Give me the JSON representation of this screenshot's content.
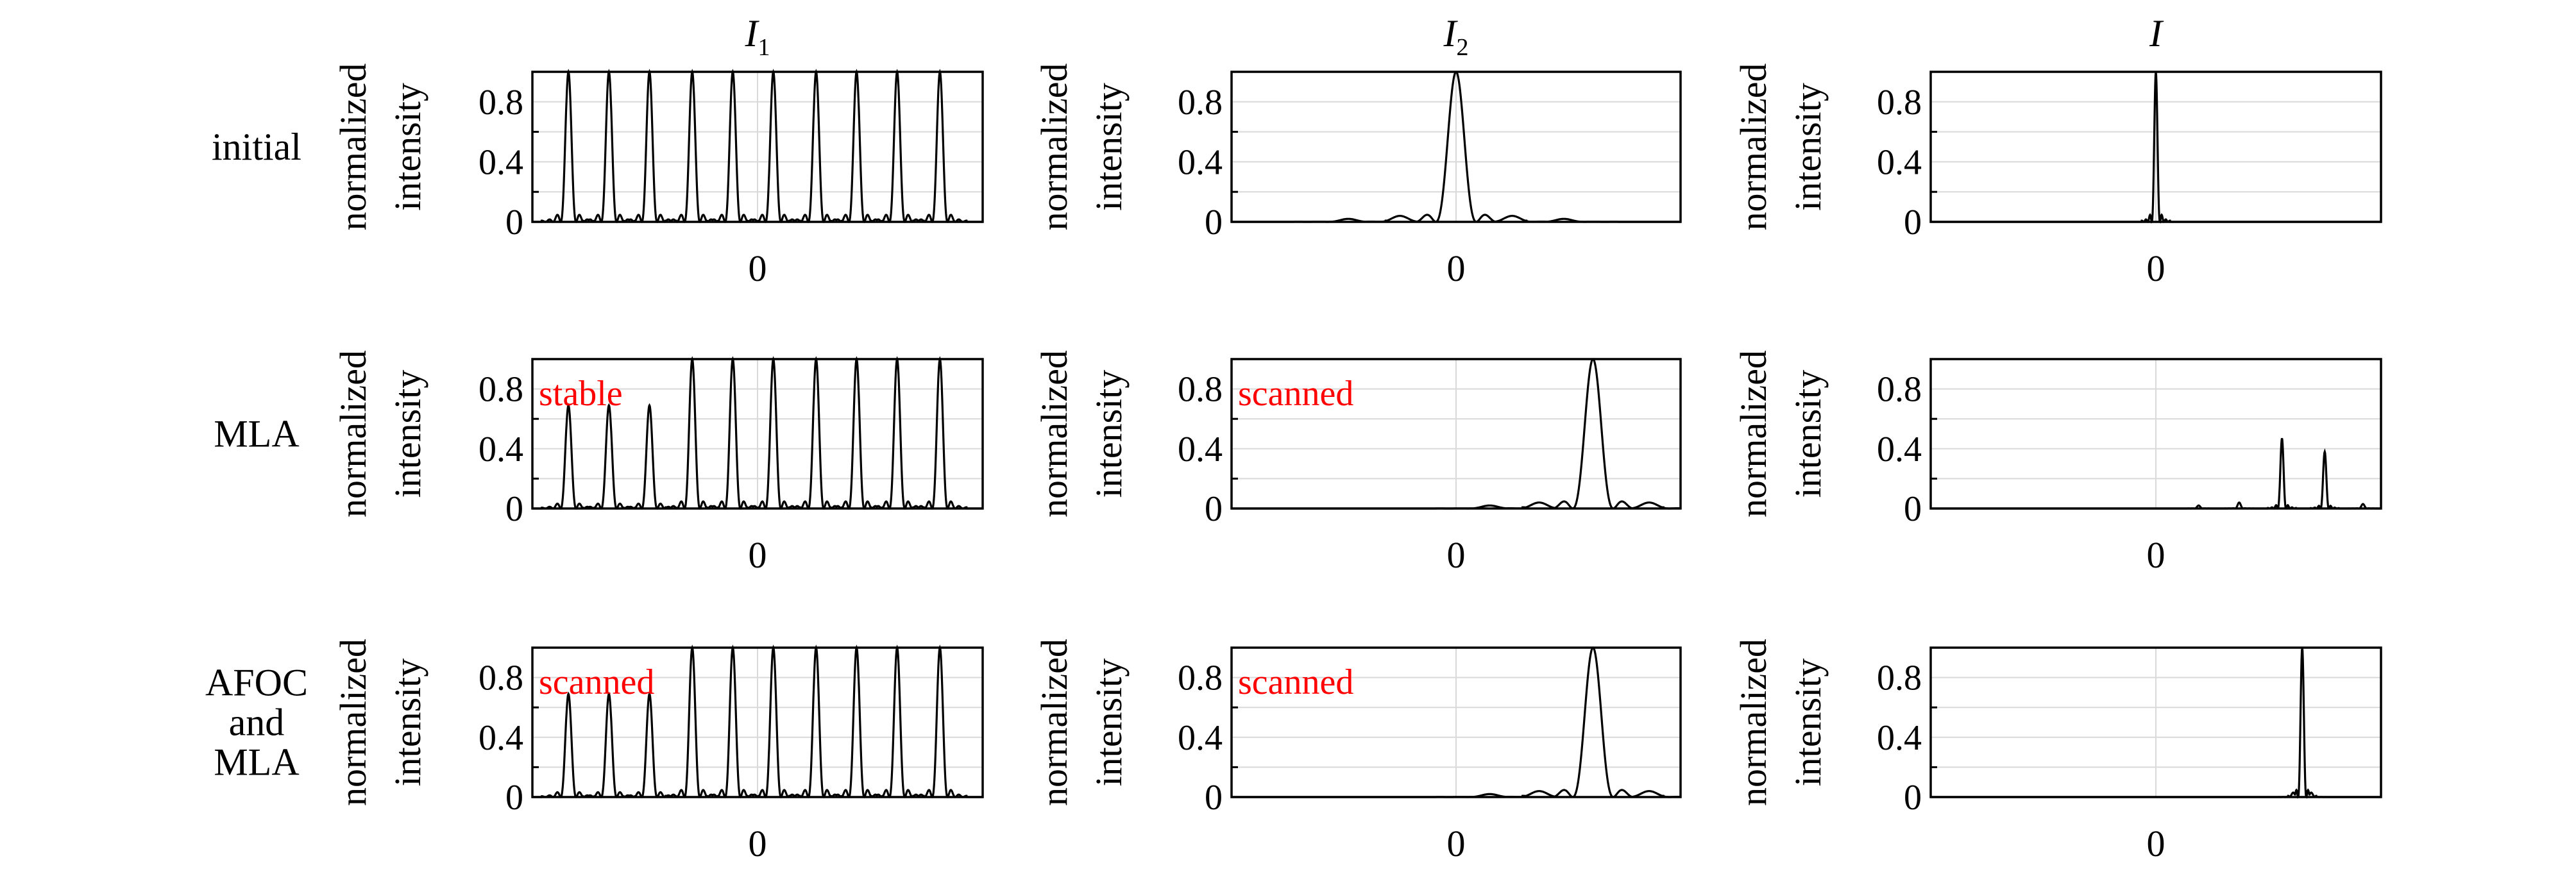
{
  "figure": {
    "columns": [
      {
        "title": "I",
        "subscript": "1"
      },
      {
        "title": "I",
        "subscript": "2"
      },
      {
        "title": "I",
        "subscript": ""
      }
    ],
    "rows": [
      {
        "label_lines": [
          "initial"
        ]
      },
      {
        "label_lines": [
          "MLA"
        ]
      },
      {
        "label_lines": [
          "AFOC",
          "and",
          "MLA"
        ]
      }
    ],
    "ylabel_lines": [
      "normalized",
      "intensity"
    ],
    "yticks": [
      "0",
      "0.4",
      "0.8"
    ],
    "xtick": "0",
    "colors": {
      "curve": "#000000",
      "annotation": "#ff0000",
      "grid": "#d9d9d9"
    }
  },
  "chart_data": [
    {
      "type": "line",
      "row": "initial",
      "column": "I1",
      "annotation": "",
      "ylim": [
        0,
        1
      ],
      "x_ticks": [
        0
      ],
      "peaks": [
        {
          "x": -0.84,
          "y": 1.0
        },
        {
          "x": -0.66,
          "y": 1.0
        },
        {
          "x": -0.48,
          "y": 1.0
        },
        {
          "x": -0.29,
          "y": 1.0
        },
        {
          "x": -0.11,
          "y": 1.0
        },
        {
          "x": 0.07,
          "y": 1.0
        },
        {
          "x": 0.26,
          "y": 1.0
        },
        {
          "x": 0.44,
          "y": 1.0
        },
        {
          "x": 0.62,
          "y": 1.0
        },
        {
          "x": 0.81,
          "y": 1.0
        }
      ]
    },
    {
      "type": "line",
      "row": "initial",
      "column": "I2",
      "annotation": "",
      "ylim": [
        0,
        1
      ],
      "x_ticks": [
        0
      ],
      "peaks": [
        {
          "x": 0.0,
          "y": 1.0
        },
        {
          "x": -0.25,
          "y": 0.04
        },
        {
          "x": 0.25,
          "y": 0.04
        },
        {
          "x": -0.48,
          "y": 0.02
        },
        {
          "x": 0.48,
          "y": 0.02
        }
      ]
    },
    {
      "type": "line",
      "row": "initial",
      "column": "I",
      "annotation": "",
      "ylim": [
        0,
        1
      ],
      "x_ticks": [
        0
      ],
      "peaks": [
        {
          "x": 0.0,
          "y": 1.0
        }
      ]
    },
    {
      "type": "line",
      "row": "MLA",
      "column": "I1",
      "annotation": "stable",
      "ylim": [
        0,
        1
      ],
      "x_ticks": [
        0
      ],
      "peaks": [
        {
          "x": -0.84,
          "y": 0.69
        },
        {
          "x": -0.66,
          "y": 0.69
        },
        {
          "x": -0.48,
          "y": 0.69
        },
        {
          "x": -0.29,
          "y": 1.0
        },
        {
          "x": -0.11,
          "y": 1.0
        },
        {
          "x": 0.07,
          "y": 1.0
        },
        {
          "x": 0.26,
          "y": 1.0
        },
        {
          "x": 0.44,
          "y": 1.0
        },
        {
          "x": 0.62,
          "y": 1.0
        },
        {
          "x": 0.81,
          "y": 1.0
        }
      ]
    },
    {
      "type": "line",
      "row": "MLA",
      "column": "I2",
      "annotation": "scanned",
      "ylim": [
        0,
        1
      ],
      "x_ticks": [
        0
      ],
      "peaks": [
        {
          "x": 0.61,
          "y": 1.0
        },
        {
          "x": 0.37,
          "y": 0.04
        },
        {
          "x": 0.86,
          "y": 0.04
        },
        {
          "x": 0.15,
          "y": 0.02
        }
      ]
    },
    {
      "type": "line",
      "row": "MLA",
      "column": "I",
      "annotation": "",
      "ylim": [
        0,
        1
      ],
      "x_ticks": [
        0
      ],
      "peaks": [
        {
          "x": 0.56,
          "y": 0.47
        },
        {
          "x": 0.75,
          "y": 0.38
        },
        {
          "x": 0.37,
          "y": 0.04
        },
        {
          "x": 0.92,
          "y": 0.03
        },
        {
          "x": 0.19,
          "y": 0.02
        }
      ]
    },
    {
      "type": "line",
      "row": "AFOC and MLA",
      "column": "I1",
      "annotation": "scanned",
      "ylim": [
        0,
        1
      ],
      "x_ticks": [
        0
      ],
      "peaks": [
        {
          "x": -0.84,
          "y": 0.69
        },
        {
          "x": -0.66,
          "y": 0.69
        },
        {
          "x": -0.48,
          "y": 0.69
        },
        {
          "x": -0.29,
          "y": 1.0
        },
        {
          "x": -0.11,
          "y": 1.0
        },
        {
          "x": 0.07,
          "y": 1.0
        },
        {
          "x": 0.26,
          "y": 1.0
        },
        {
          "x": 0.44,
          "y": 1.0
        },
        {
          "x": 0.62,
          "y": 1.0
        },
        {
          "x": 0.81,
          "y": 1.0
        }
      ]
    },
    {
      "type": "line",
      "row": "AFOC and MLA",
      "column": "I2",
      "annotation": "scanned",
      "ylim": [
        0,
        1
      ],
      "x_ticks": [
        0
      ],
      "peaks": [
        {
          "x": 0.61,
          "y": 1.0
        },
        {
          "x": 0.37,
          "y": 0.04
        },
        {
          "x": 0.86,
          "y": 0.04
        },
        {
          "x": 0.15,
          "y": 0.02
        }
      ]
    },
    {
      "type": "line",
      "row": "AFOC and MLA",
      "column": "I",
      "annotation": "",
      "ylim": [
        0,
        1
      ],
      "x_ticks": [
        0
      ],
      "peaks": [
        {
          "x": 0.65,
          "y": 1.0
        },
        {
          "x": 0.61,
          "y": 0.03
        },
        {
          "x": 0.69,
          "y": 0.03
        }
      ]
    }
  ]
}
